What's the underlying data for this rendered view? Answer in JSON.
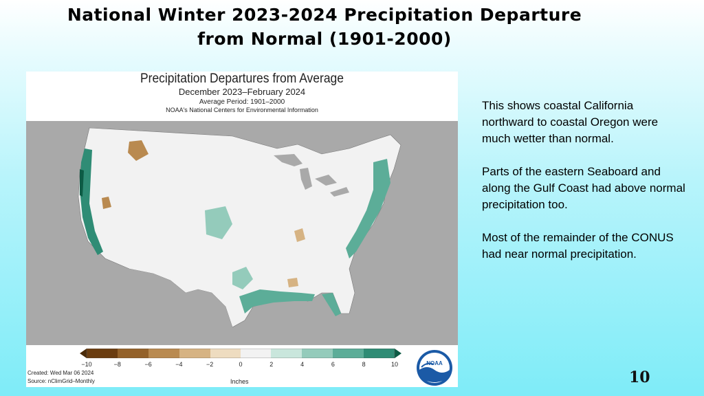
{
  "slide": {
    "title_line1": "National Winter 2023-2024 Precipitation Departure",
    "title_line2": "from Normal  (1901-2000)",
    "page_number": "10"
  },
  "map": {
    "title": "Precipitation Departures from Average",
    "subtitle": "December 2023–February 2024",
    "period": "Average Period: 1901–2000",
    "org": "NOAA's National Centers for Environmental Information",
    "colorbar_ticks": [
      "−10",
      "−8",
      "−6",
      "−4",
      "−2",
      "0",
      "2",
      "4",
      "6",
      "8",
      "10"
    ],
    "units": "Inches",
    "created": "Created: Wed Mar 06 2024",
    "source": "Source: nClimGrid–Monthly",
    "logo_text": "NOAA",
    "colors": {
      "dry": [
        "#6b3d10",
        "#94622a",
        "#b98a50",
        "#d6b383",
        "#eedcc0"
      ],
      "neutral": "#f2f2f2",
      "wet": [
        "#c9e6dc",
        "#94cbbb",
        "#5cad98",
        "#2f8c75",
        "#0d5b45"
      ],
      "land_outside": "#a9a9a9"
    }
  },
  "notes": {
    "p1": "This shows coastal California northward to coastal Oregon were much wetter than normal.",
    "p2": "Parts of the eastern Seaboard and along the Gulf Coast had above normal precipitation too.",
    "p3": "Most of the remainder of the CONUS had near normal precipitation."
  }
}
